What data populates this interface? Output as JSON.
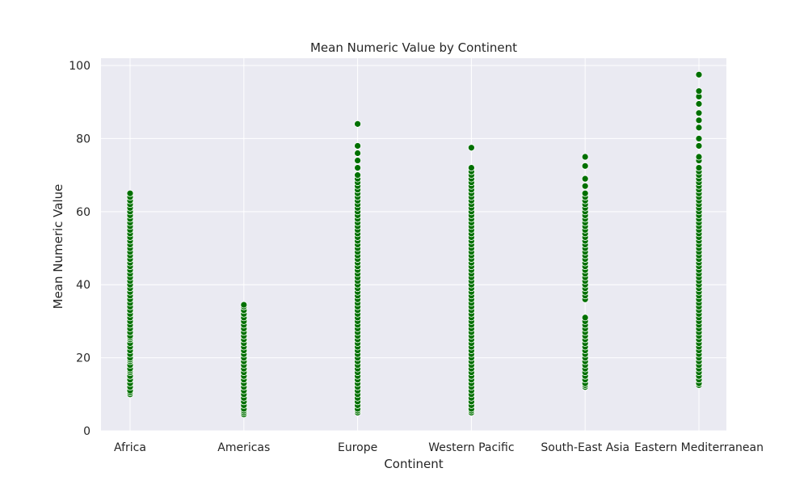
{
  "chart_data": {
    "type": "scatter",
    "title": "Mean Numeric Value by Continent",
    "xlabel": "Continent",
    "ylabel": "Mean Numeric Value",
    "ylim": [
      0,
      102
    ],
    "yticks": [
      0,
      20,
      40,
      60,
      80,
      100
    ],
    "grid": true,
    "legend": "none",
    "colors": {
      "background": "#eaeaf2",
      "grid": "#ffffff",
      "point": "#007000",
      "point_edge": "#ffffff"
    },
    "categories": [
      "Africa",
      "Americas",
      "Europe",
      "Western Pacific",
      "South-East Asia",
      "Eastern Mediterranean"
    ],
    "series": [
      {
        "values": [
          [
            10,
            10.5,
            11,
            12,
            13,
            14,
            15,
            16,
            16.5,
            17,
            18,
            19,
            19.5,
            20,
            21,
            22,
            23,
            24,
            25,
            25.5,
            26,
            27,
            28,
            29,
            30,
            31,
            32,
            33,
            34,
            35,
            36,
            37,
            38,
            39,
            40,
            41,
            42,
            43,
            44,
            45,
            46,
            47,
            48,
            49,
            50,
            51,
            52,
            53,
            54,
            55,
            56,
            57,
            58,
            59,
            60,
            61,
            62,
            63,
            64,
            65
          ],
          [
            4.5,
            5,
            5.5,
            6,
            7,
            8,
            9,
            10,
            11,
            12,
            13,
            14,
            15,
            16,
            17,
            18,
            19,
            20,
            21,
            22,
            23,
            24,
            25,
            26,
            27,
            28,
            29,
            30,
            31,
            32,
            33,
            34,
            34.5
          ],
          [
            5,
            5.5,
            6,
            7,
            8,
            9,
            10,
            11,
            12,
            13,
            14,
            15,
            16,
            17,
            18,
            19,
            20,
            21,
            22,
            23,
            24,
            25,
            26,
            27,
            28,
            29,
            30,
            31,
            32,
            33,
            34,
            35,
            36,
            37,
            38,
            39,
            40,
            41,
            42,
            43,
            44,
            45,
            46,
            47,
            48,
            49,
            50,
            51,
            52,
            53,
            54,
            55,
            56,
            57,
            58,
            59,
            60,
            61,
            62,
            63,
            64,
            65,
            66,
            67,
            68,
            69,
            70,
            72,
            74,
            76,
            78,
            84
          ],
          [
            5,
            5.5,
            6,
            7,
            8,
            9,
            10,
            11,
            12,
            13,
            14,
            15,
            16,
            17,
            18,
            19,
            20,
            21,
            22,
            23,
            24,
            25,
            26,
            27,
            28,
            29,
            30,
            31,
            32,
            33,
            34,
            35,
            36,
            37,
            38,
            39,
            40,
            41,
            42,
            43,
            44,
            45,
            46,
            47,
            48,
            49,
            50,
            51,
            52,
            53,
            54,
            55,
            56,
            57,
            58,
            59,
            60,
            61,
            62,
            63,
            64,
            65,
            66,
            67,
            68,
            69,
            70,
            71,
            72,
            77.5
          ],
          [
            12,
            12.5,
            13,
            14,
            15,
            16,
            17,
            18,
            19,
            20,
            21,
            22,
            23,
            24,
            25,
            26,
            27,
            28,
            29,
            30,
            31,
            36,
            37,
            38,
            39,
            40,
            41,
            42,
            43,
            44,
            45,
            46,
            47,
            48,
            49,
            50,
            51,
            52,
            53,
            54,
            55,
            56,
            57,
            58,
            59,
            60,
            61,
            62,
            63,
            64,
            65,
            67,
            69,
            72.5,
            75
          ],
          [
            12.5,
            13,
            14,
            15,
            16,
            17,
            18,
            19,
            20,
            21,
            22,
            23,
            24,
            25,
            26,
            27,
            28,
            29,
            30,
            31,
            32,
            33,
            34,
            35,
            36,
            37,
            38,
            39,
            40,
            41,
            42,
            43,
            44,
            45,
            46,
            47,
            48,
            49,
            50,
            51,
            52,
            53,
            54,
            55,
            56,
            57,
            58,
            59,
            60,
            61,
            62,
            63,
            64,
            65,
            66,
            67,
            68,
            69,
            70,
            71,
            72,
            74,
            75,
            78,
            80,
            83,
            85,
            87,
            89.5,
            91.5,
            93,
            97.5
          ]
        ]
      }
    ]
  }
}
